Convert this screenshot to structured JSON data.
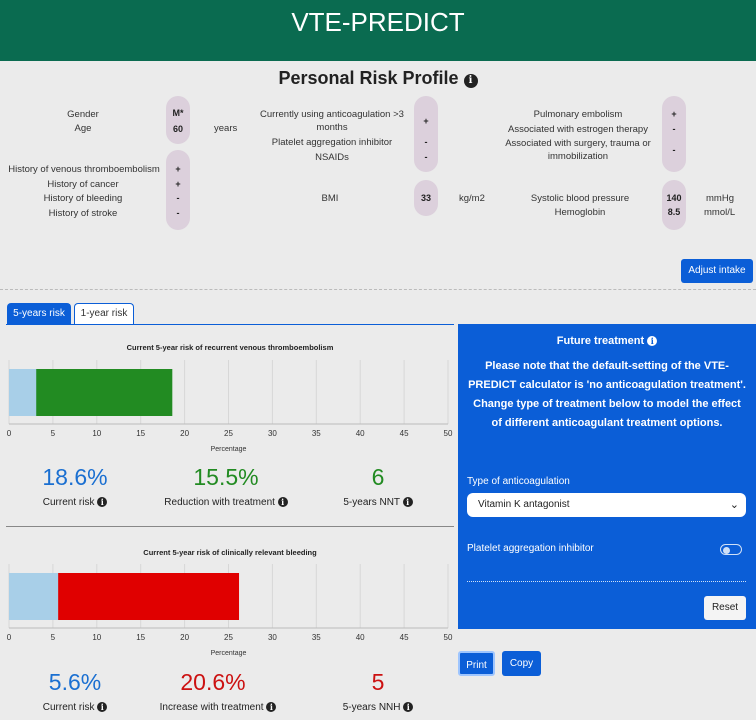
{
  "header": {
    "title": "VTE-PREDICT"
  },
  "profile": {
    "title": "Personal Risk Profile",
    "col1": [
      {
        "label": "Gender",
        "value": "M*"
      },
      {
        "label": "Age",
        "value": "60",
        "unit": "years"
      },
      {
        "label": "History of venous thromboembolism",
        "value": "+"
      },
      {
        "label": "History of cancer",
        "value": "+"
      },
      {
        "label": "History of bleeding",
        "value": "-"
      },
      {
        "label": "History of stroke",
        "value": "-"
      }
    ],
    "col2": [
      {
        "label": "Currently using anticoagulation >3 months",
        "value": "+"
      },
      {
        "label": "Platelet aggregation inhibitor",
        "value": "-"
      },
      {
        "label": "NSAIDs",
        "value": "-"
      },
      {
        "label": "BMI",
        "value": "33",
        "unit": "kg/m2"
      }
    ],
    "col3": [
      {
        "label": "Pulmonary embolism",
        "value": "+"
      },
      {
        "label": "Associated with estrogen therapy",
        "value": "-"
      },
      {
        "label": "Associated with surgery, trauma or immobilization",
        "value": "-"
      },
      {
        "label": "Systolic blood pressure",
        "value": "140",
        "unit": "mmHg"
      },
      {
        "label": "Hemoglobin",
        "value": "8.5",
        "unit": "mmol/L"
      }
    ],
    "adjust_button": "Adjust intake"
  },
  "tabs": [
    {
      "label": "5-years risk",
      "active": true
    },
    {
      "label": "1-year risk",
      "active": false
    }
  ],
  "chart_data": [
    {
      "type": "bar",
      "title": "Current 5-year risk of recurrent venous thromboembolism",
      "xlabel": "Percentage",
      "xlim": [
        0,
        50
      ],
      "ticks": [
        "0",
        "5",
        "10",
        "15",
        "20",
        "25",
        "30",
        "35",
        "40",
        "45",
        "50"
      ],
      "series": [
        {
          "value": 3.1,
          "color": "#a8cfe8"
        },
        {
          "value": 18.6,
          "color": "#228b22"
        }
      ]
    },
    {
      "type": "bar",
      "title": "Current 5-year risk of clinically relevant bleeding",
      "xlabel": "Percentage",
      "xlim": [
        0,
        50
      ],
      "ticks": [
        "0",
        "5",
        "10",
        "15",
        "20",
        "25",
        "30",
        "35",
        "40",
        "45",
        "50"
      ],
      "series": [
        {
          "value": 5.6,
          "color": "#a8cfe8"
        },
        {
          "value": 26.2,
          "color": "#e00000"
        }
      ]
    }
  ],
  "vte_stats": [
    {
      "value": "18.6%",
      "caption": "Current risk",
      "color": "#1a6fd1"
    },
    {
      "value": "15.5%",
      "caption": "Reduction with treatment",
      "color": "#228b22"
    },
    {
      "value": "6",
      "caption": "5-years NNT",
      "color": "#228b22"
    }
  ],
  "bleed_stats": [
    {
      "value": "5.6%",
      "caption": "Current risk",
      "color": "#1a6fd1"
    },
    {
      "value": "20.6%",
      "caption": "Increase with treatment",
      "color": "#cc1111"
    },
    {
      "value": "5",
      "caption": "5-years NNH",
      "color": "#cc1111"
    }
  ],
  "treatment": {
    "title": "Future treatment",
    "note": "Please note that the default-setting of the VTE-PREDICT calculator is 'no anticoagulation treatment'. Change type of treatment below to model the effect of different anticoagulant treatment options.",
    "anticoag_label": "Type of anticoagulation",
    "anticoag_value": "Vitamin K antagonist",
    "platelet_label": "Platelet aggregation inhibitor",
    "platelet_on": false,
    "reset_button": "Reset"
  },
  "actions": {
    "print": "Print",
    "copy": "Copy"
  }
}
